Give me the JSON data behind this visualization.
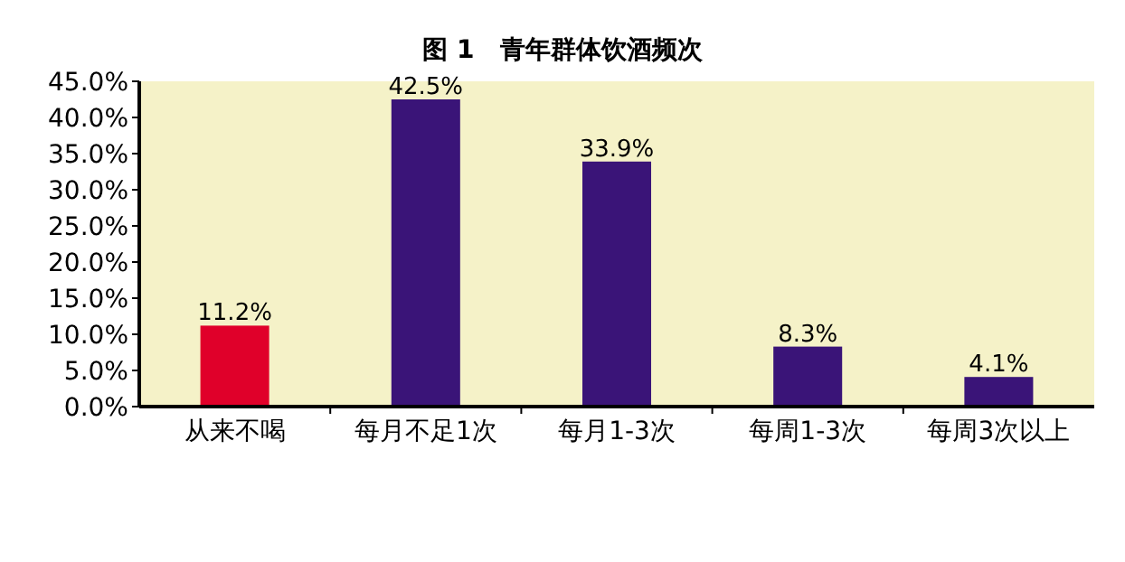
{
  "chart_data": {
    "type": "bar",
    "title": "图 1　青年群体饮酒频次",
    "categories": [
      "从来不喝",
      "每月不足1次",
      "每月1-3次",
      "每周1-3次",
      "每周3次以上"
    ],
    "values": [
      11.2,
      42.5,
      33.9,
      8.3,
      4.1
    ],
    "colors": [
      "#e0002a",
      "#3a1478",
      "#3a1478",
      "#3a1478",
      "#3a1478"
    ],
    "value_labels": [
      "11.2%",
      "42.5%",
      "33.9%",
      "8.3%",
      "4.1%"
    ],
    "ylim": [
      0,
      45
    ],
    "yticks": [
      {
        "value": 0,
        "label": "0.0%"
      },
      {
        "value": 5,
        "label": "5.0%"
      },
      {
        "value": 10,
        "label": "10.0%"
      },
      {
        "value": 15,
        "label": "15.0%"
      },
      {
        "value": 20,
        "label": "20.0%"
      },
      {
        "value": 25,
        "label": "25.0%"
      },
      {
        "value": 30,
        "label": "30.0%"
      },
      {
        "value": 35,
        "label": "35.0%"
      },
      {
        "value": 40,
        "label": "40.0%"
      },
      {
        "value": 45,
        "label": "45.0%"
      }
    ],
    "grid": false
  }
}
